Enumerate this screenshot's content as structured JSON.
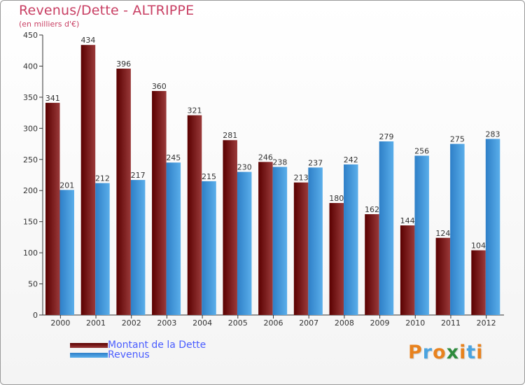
{
  "title": "Revenus/Dette - ALTRIPPE",
  "subtitle": "(en milliers d'€)",
  "logo": {
    "text": "Proxiti"
  },
  "colors": {
    "title": "#c83f63",
    "dette_dark": "#5a0000",
    "dette_light": "#9a3a3a",
    "revenus_dark": "#2e7fc7",
    "revenus_light": "#5aaeea",
    "legend_text": "#4a5dff"
  },
  "legend": [
    {
      "label": "Montant de la Dette"
    },
    {
      "label": "Revenus"
    }
  ],
  "chart_data": {
    "type": "bar",
    "categories": [
      "2000",
      "2001",
      "2002",
      "2003",
      "2004",
      "2005",
      "2006",
      "2007",
      "2008",
      "2009",
      "2010",
      "2011",
      "2012"
    ],
    "series": [
      {
        "name": "Montant de la Dette",
        "values": [
          341,
          434,
          396,
          360,
          321,
          281,
          246,
          213,
          180,
          162,
          144,
          124,
          104
        ]
      },
      {
        "name": "Revenus",
        "values": [
          201,
          212,
          217,
          245,
          215,
          230,
          238,
          237,
          242,
          279,
          256,
          275,
          283
        ]
      }
    ],
    "ylim": [
      0,
      450
    ],
    "yticks": [
      0,
      50,
      100,
      150,
      200,
      250,
      300,
      350,
      400,
      450
    ],
    "grid": false,
    "legend_position": "bottom-left"
  }
}
